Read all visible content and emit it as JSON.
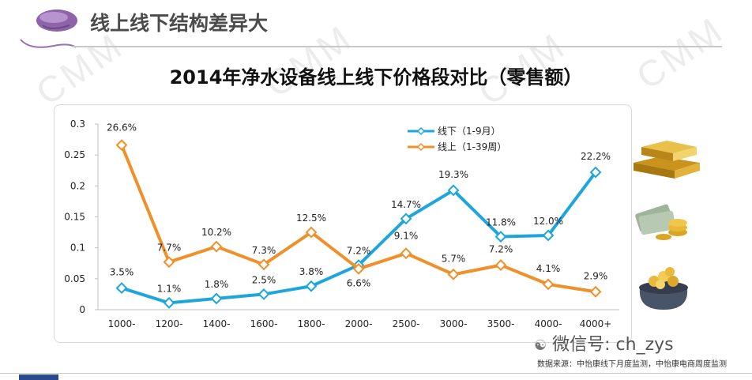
{
  "header": {
    "title": "线上线下结构差异大"
  },
  "source_text": "数据来源：中怡康线下月度监测，中怡康电商周度监测",
  "wechat_text": "微信号: ch_zys",
  "watermark_text": "CMM",
  "colors": {
    "offline": "#1ea6dc",
    "online": "#f0902a",
    "axis": "#bfbfbf"
  },
  "icons": [
    "gold-bars-icon",
    "money-coins-icon",
    "coin-purse-icon",
    "mouse-icon",
    "wechat-icon"
  ],
  "chart_data": {
    "type": "line",
    "title": "2014年净水设备线上线下价格段对比（零售额）",
    "xlabel": "",
    "ylabel": "",
    "categories": [
      "1000-",
      "1200-",
      "1400-",
      "1600-",
      "1800-",
      "2000-",
      "2500-",
      "3000-",
      "3500-",
      "4000-",
      "4000+"
    ],
    "ylim": [
      0,
      0.3
    ],
    "yticks": [
      "0",
      "0.05",
      "0.1",
      "0.15",
      "0.2",
      "0.25",
      "0.3"
    ],
    "legend_position": "top-center",
    "grid": false,
    "series": [
      {
        "name": "线下（1-9月）",
        "color": "#1ea6dc",
        "values": [
          0.035,
          0.011,
          0.018,
          0.025,
          0.038,
          0.072,
          0.147,
          0.193,
          0.118,
          0.12,
          0.222
        ],
        "labels": [
          "3.5%",
          "1.1%",
          "1.8%",
          "2.5%",
          "3.8%",
          "7.2%",
          "14.7%",
          "19.3%",
          "11.8%",
          "12.0%",
          "22.2%"
        ]
      },
      {
        "name": "线上（1-39周）",
        "color": "#f0902a",
        "values": [
          0.266,
          0.077,
          0.102,
          0.073,
          0.125,
          0.066,
          0.091,
          0.057,
          0.072,
          0.041,
          0.029
        ],
        "labels": [
          "26.6%",
          "7.7%",
          "10.2%",
          "7.3%",
          "12.5%",
          "6.6%",
          "9.1%",
          "5.7%",
          "7.2%",
          "4.1%",
          "2.9%"
        ]
      }
    ]
  }
}
